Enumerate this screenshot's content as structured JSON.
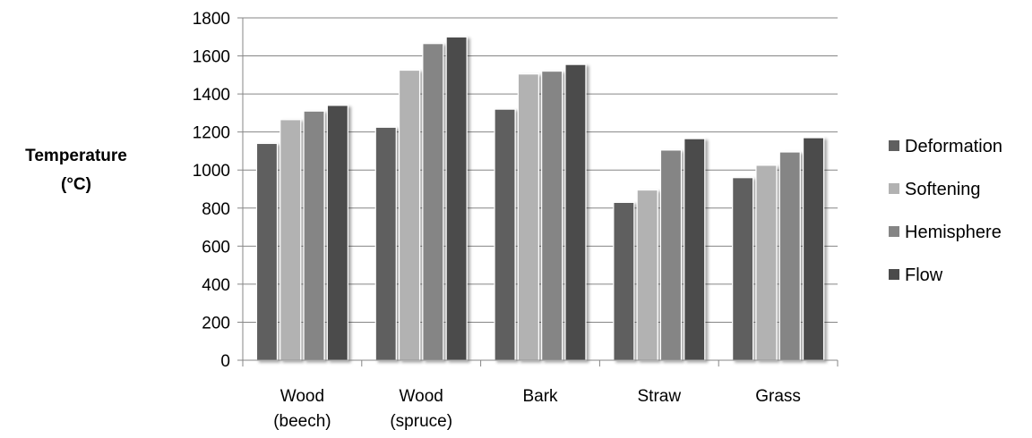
{
  "chart_data": {
    "type": "bar",
    "title": "",
    "xlabel": "",
    "ylabel": "Temperature (°C)",
    "ylabel_lines": [
      "Temperature",
      "(°C)"
    ],
    "ylim": [
      0,
      1800
    ],
    "yticks": [
      0,
      200,
      400,
      600,
      800,
      1000,
      1200,
      1400,
      1600,
      1800
    ],
    "grid": true,
    "legend_position": "right",
    "categories": [
      [
        "Wood",
        "(beech)"
      ],
      [
        "Wood",
        "(spruce)"
      ],
      [
        "Bark"
      ],
      [
        "Straw"
      ],
      [
        "Grass"
      ]
    ],
    "series": [
      {
        "name": "Deformation",
        "color": "#5f5f5f",
        "values": [
          1140,
          1225,
          1320,
          830,
          960
        ]
      },
      {
        "name": "Softening",
        "color": "#b2b2b2",
        "values": [
          1265,
          1525,
          1505,
          895,
          1025
        ]
      },
      {
        "name": "Hemisphere",
        "color": "#858585",
        "values": [
          1310,
          1665,
          1520,
          1105,
          1095
        ]
      },
      {
        "name": "Flow",
        "color": "#4b4b4b",
        "values": [
          1340,
          1700,
          1555,
          1165,
          1170
        ]
      }
    ]
  }
}
